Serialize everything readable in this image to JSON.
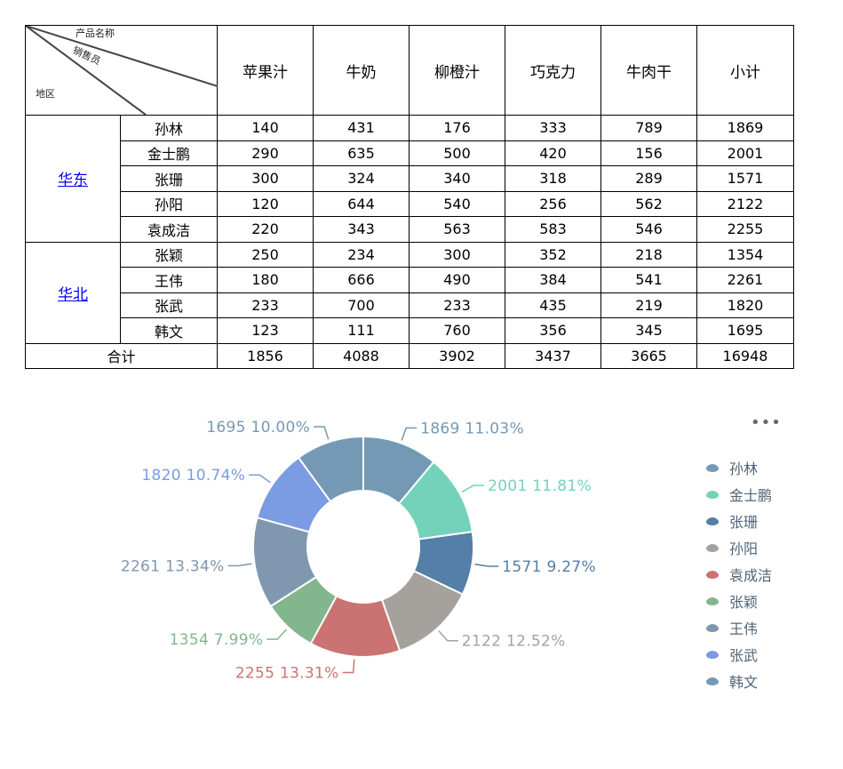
{
  "table": {
    "corner": {
      "product": "产品名称",
      "salesperson": "销售员",
      "region": "地区"
    },
    "columns": [
      "苹果汁",
      "牛奶",
      "柳橙汁",
      "巧克力",
      "牛肉干",
      "小计"
    ],
    "groups": [
      {
        "region": "华东",
        "rows": [
          {
            "name": "孙林",
            "values": [
              "140",
              "431",
              "176",
              "333",
              "789",
              "1869"
            ]
          },
          {
            "name": "金士鹏",
            "values": [
              "290",
              "635",
              "500",
              "420",
              "156",
              "2001"
            ]
          },
          {
            "name": "张珊",
            "values": [
              "300",
              "324",
              "340",
              "318",
              "289",
              "1571"
            ]
          },
          {
            "name": "孙阳",
            "values": [
              "120",
              "644",
              "540",
              "256",
              "562",
              "2122"
            ]
          },
          {
            "name": "袁成洁",
            "values": [
              "220",
              "343",
              "563",
              "583",
              "546",
              "2255"
            ]
          }
        ]
      },
      {
        "region": "华北",
        "rows": [
          {
            "name": "张颖",
            "values": [
              "250",
              "234",
              "300",
              "352",
              "218",
              "1354"
            ]
          },
          {
            "name": "王伟",
            "values": [
              "180",
              "666",
              "490",
              "384",
              "541",
              "2261"
            ]
          },
          {
            "name": "张武",
            "values": [
              "233",
              "700",
              "233",
              "435",
              "219",
              "1820"
            ]
          },
          {
            "name": "韩文",
            "values": [
              "123",
              "111",
              "760",
              "356",
              "345",
              "1695"
            ]
          }
        ]
      }
    ],
    "total": {
      "label": "合计",
      "values": [
        "1856",
        "4088",
        "3902",
        "3437",
        "3665",
        "16948"
      ]
    }
  },
  "more_label": "•••",
  "chart_data": {
    "type": "pie",
    "donut": true,
    "slices": [
      {
        "name": "孙林",
        "value": 1869,
        "label": "1869  11.03%",
        "color": "#7399b5"
      },
      {
        "name": "金士鹏",
        "value": 2001,
        "label": "2001  11.81%",
        "color": "#74d2bb"
      },
      {
        "name": "张珊",
        "value": 1571,
        "label": "1571  9.27%",
        "color": "#537fa8"
      },
      {
        "name": "孙阳",
        "value": 2122,
        "label": "2122  12.52%",
        "color": "#a5a29d"
      },
      {
        "name": "袁成洁",
        "value": 2255,
        "label": "2255  13.31%",
        "color": "#cb7372"
      },
      {
        "name": "张颖",
        "value": 1354,
        "label": "1354  7.99%",
        "color": "#84b68d"
      },
      {
        "name": "王伟",
        "value": 2261,
        "label": "2261  13.34%",
        "color": "#8097b0"
      },
      {
        "name": "张武",
        "value": 1820,
        "label": "1820  10.74%",
        "color": "#7b9be2"
      },
      {
        "name": "韩文",
        "value": 1695,
        "label": "1695  10.00%",
        "color": "#7599b4"
      }
    ],
    "legend_position": "right"
  }
}
